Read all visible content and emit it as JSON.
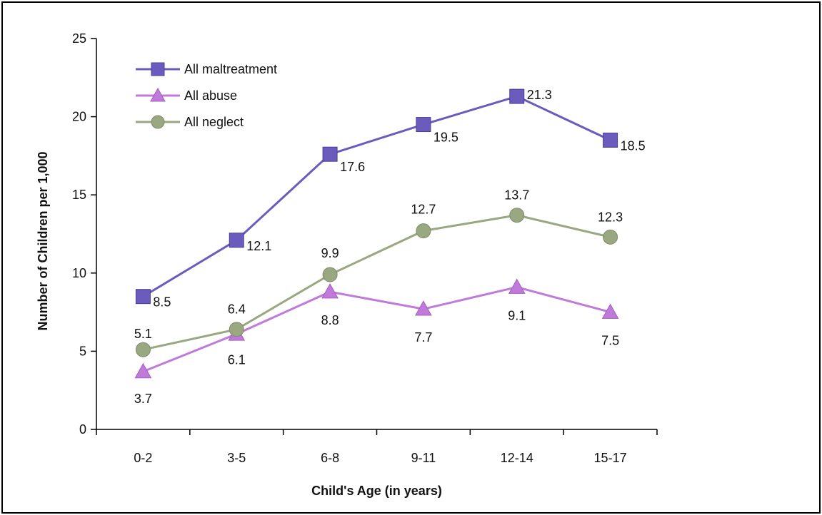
{
  "chart_data": {
    "type": "line",
    "title": "",
    "xlabel": "Child's Age (in years)",
    "ylabel": "Number of Children per 1,000",
    "categories": [
      "0-2",
      "3-5",
      "6-8",
      "9-11",
      "12-14",
      "15-17"
    ],
    "ylim": [
      0,
      25
    ],
    "yticks": [
      "0",
      "5",
      "10",
      "15",
      "20",
      "25"
    ],
    "grid": false,
    "legend_position": "top-left",
    "series": [
      {
        "name": "All maltreatment",
        "values": [
          8.5,
          12.1,
          17.6,
          19.5,
          21.3,
          18.5
        ],
        "labels": [
          "8.5",
          "12.1",
          "17.6",
          "19.5",
          "21.3",
          "18.5"
        ],
        "color": "#6a5bbd",
        "marker": "square"
      },
      {
        "name": "All abuse",
        "values": [
          3.7,
          6.1,
          8.8,
          7.7,
          9.1,
          7.5
        ],
        "labels": [
          "3.7",
          "6.1",
          "8.8",
          "7.7",
          "9.1",
          "7.5"
        ],
        "color": "#c07ad9",
        "marker": "triangle"
      },
      {
        "name": "All neglect",
        "values": [
          5.1,
          6.4,
          9.9,
          12.7,
          13.7,
          12.3
        ],
        "labels": [
          "5.1",
          "6.4",
          "9.9",
          "12.7",
          "13.7",
          "12.3"
        ],
        "color": "#9aa882",
        "marker": "circle"
      }
    ]
  }
}
